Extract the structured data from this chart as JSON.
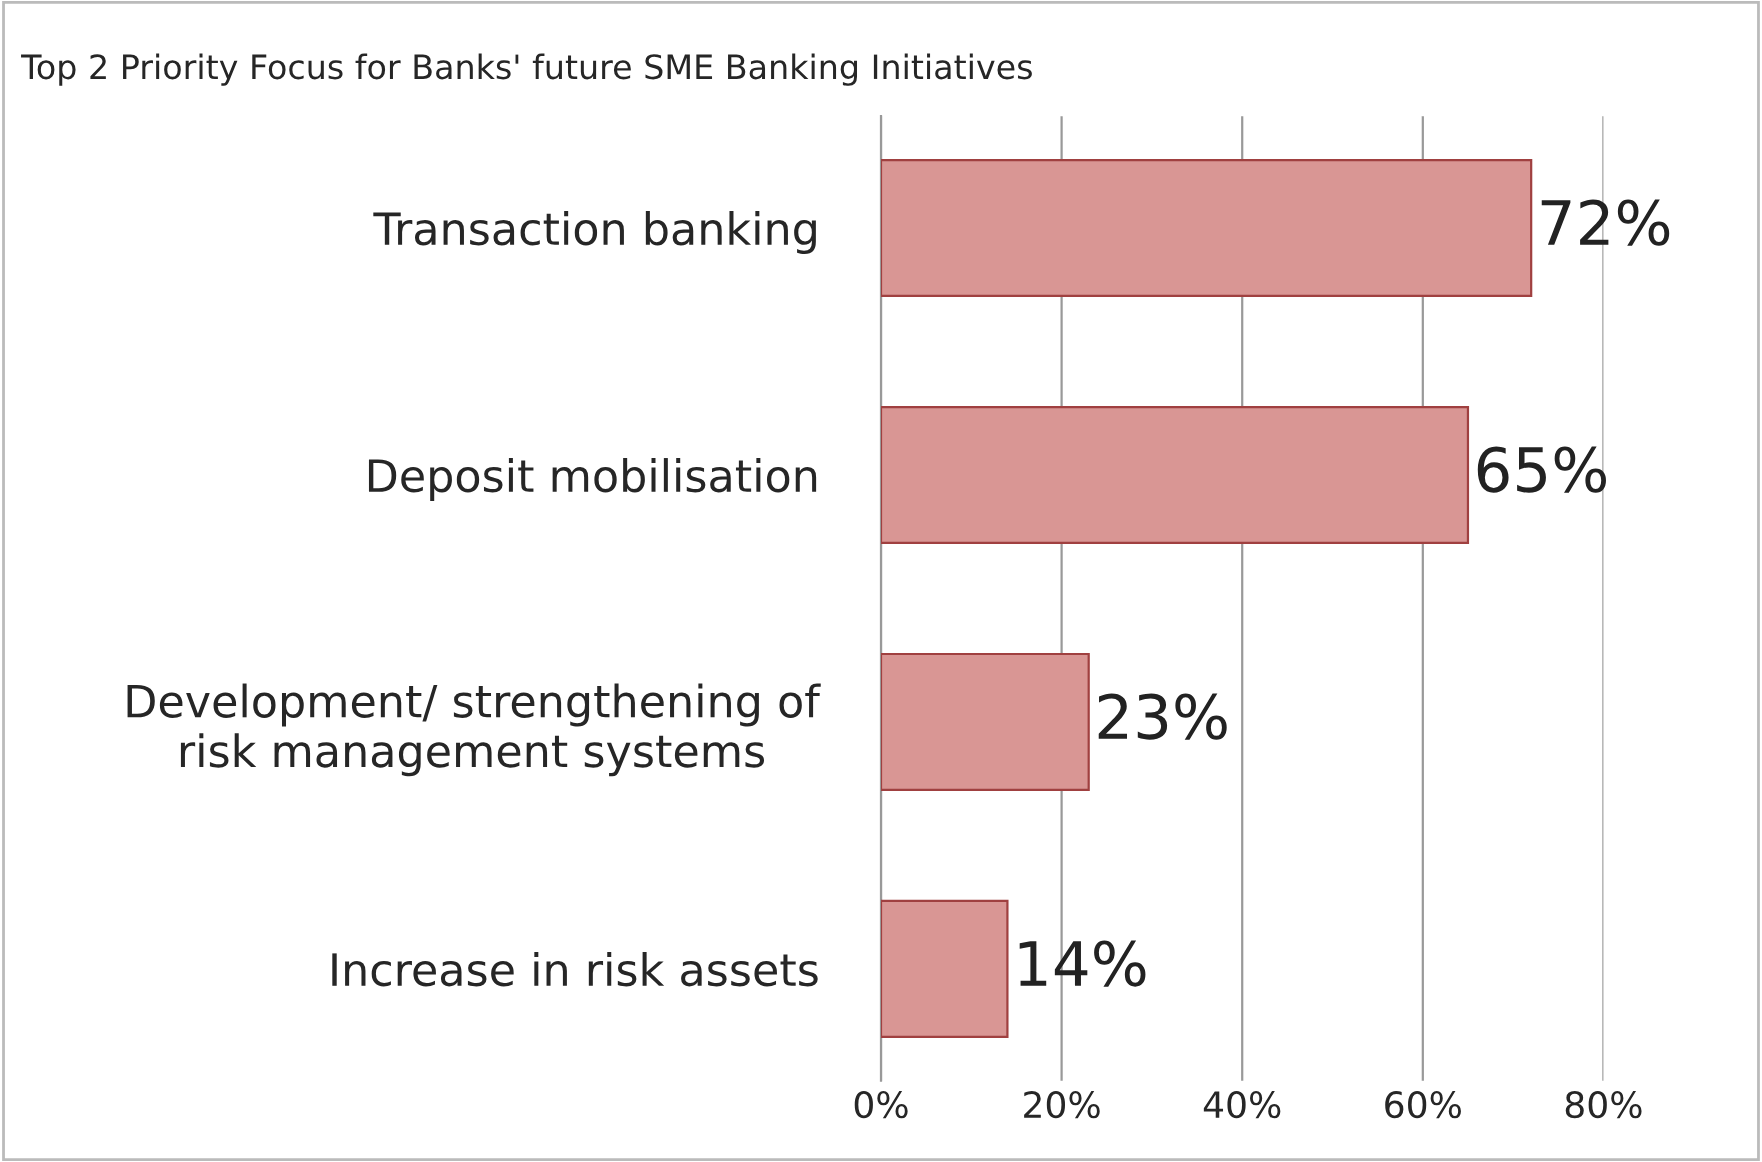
{
  "chart_data": {
    "type": "bar",
    "orientation": "horizontal",
    "title": "Top 2 Priority Focus for Banks' future SME Banking Initiatives",
    "categories": [
      "Transaction banking",
      "Deposit mobilisation",
      "Development/ strengthening of\nrisk management systems",
      "Increase in risk assets"
    ],
    "values": [
      72,
      65,
      23,
      14
    ],
    "value_labels": [
      "72%",
      "65%",
      "23%",
      "14%"
    ],
    "color": "#d99694",
    "xlim": [
      0,
      80
    ],
    "xticks": [
      {
        "value": 0,
        "label": "0%"
      },
      {
        "value": 20,
        "label": "20%"
      },
      {
        "value": 40,
        "label": "40%"
      },
      {
        "value": 60,
        "label": "60%"
      },
      {
        "value": 80,
        "label": "80%"
      }
    ],
    "grid": "x",
    "legend": false
  }
}
